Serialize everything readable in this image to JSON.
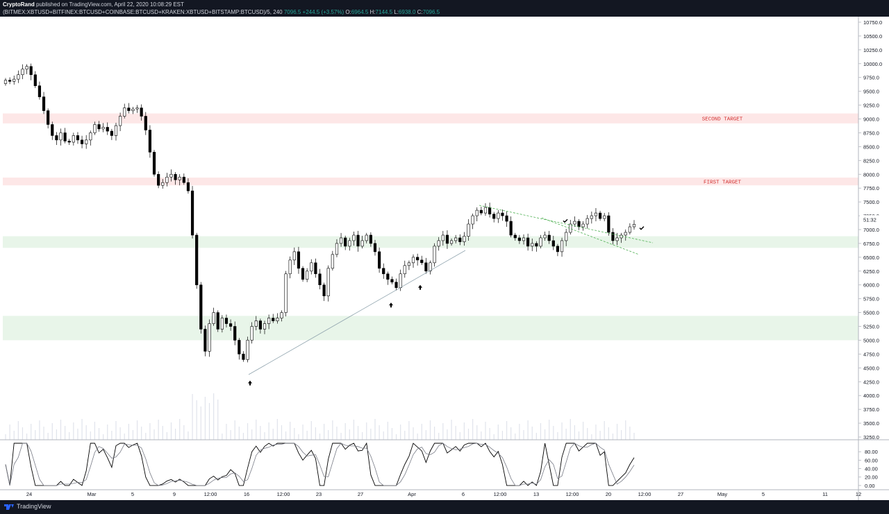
{
  "header": {
    "author": "CryptoRand",
    "published": "published on TradingView.com, April 22, 2020 10:08:29 EST",
    "symbol": "(BITMEX:XBTUSD+BITFINEX:BTCUSD+COINBASE:BTCUSD+KRAKEN:XBTUSD+BITSTAMP:BTCUSD)/5, 240",
    "last": "7096.5",
    "change": "+244.5 (+3.57%)",
    "open_label": "O:",
    "open": "6964.5",
    "high_label": "H:",
    "high": "7144.5",
    "low_label": "L:",
    "low": "6938.0",
    "close_label": "C:",
    "close": "7096.5"
  },
  "footer": {
    "brand": "TradingView"
  },
  "colors": {
    "up": "#ffffff",
    "down": "#000000",
    "support_zone": "#e8f5e9",
    "target_zone": "#fde7e7",
    "target_text": "#d32f2f",
    "price_marker": "#131722"
  },
  "chart_data": {
    "type": "candlestick",
    "price_axis": {
      "ylim": [
        3200,
        10850
      ],
      "ticks": [
        "10750.0",
        "10500.0",
        "10250.0",
        "10000.0",
        "9750.0",
        "9500.0",
        "9250.0",
        "9000.0",
        "8750.0",
        "8500.0",
        "8250.0",
        "8000.0",
        "7750.0",
        "7500.0",
        "7250.0",
        "7000.0",
        "6750.0",
        "6500.0",
        "6250.0",
        "6000.0",
        "5750.0",
        "5500.0",
        "5250.0",
        "5000.0",
        "4750.0",
        "4500.0",
        "4250.0",
        "4000.0",
        "3750.0",
        "3500.0",
        "3250.0"
      ],
      "current_price_label": "51:32",
      "current_price": 7096.5
    },
    "time_axis": {
      "ticks": [
        "24",
        "Mar",
        "5",
        "9",
        "12:00",
        "16",
        "12:00",
        "23",
        "27",
        "Apr",
        "6",
        "12:00",
        "13",
        "12:00",
        "20",
        "12:00",
        "27",
        "May",
        "5",
        "11",
        "12"
      ]
    },
    "oscillator_axis": {
      "ylim": [
        -10,
        105
      ],
      "ticks": [
        "80.00",
        "60.00",
        "40.00",
        "20.00",
        "0.00"
      ]
    },
    "zones": [
      {
        "label": "SECOND TARGET",
        "low": 8920,
        "high": 9100,
        "kind": "target"
      },
      {
        "label": "FIRST TARGET",
        "low": 7800,
        "high": 7940,
        "kind": "target"
      },
      {
        "label": "",
        "low": 6670,
        "high": 6880,
        "kind": "support"
      },
      {
        "label": "",
        "low": 5000,
        "high": 5440,
        "kind": "support"
      }
    ],
    "annotations": {
      "check_marks": [
        {
          "price": 7160
        },
        {
          "price": 7030
        }
      ],
      "arrows": [
        {
          "price": 4220
        },
        {
          "price": 5630
        },
        {
          "price": 5950
        }
      ]
    },
    "series": [
      {
        "name": "",
        "values": [
          9700,
          9680,
          9720,
          9800,
          9900,
          9950,
          9800,
          9600,
          9400,
          9150,
          8900,
          8700,
          8620,
          8750,
          8600,
          8580,
          8700,
          8620,
          8550,
          8620,
          8750,
          8900,
          8820,
          8850,
          8780,
          8700,
          8880,
          9050,
          9200,
          9150,
          9180,
          9200,
          9050,
          8800,
          8400,
          8000,
          7800,
          7850,
          7950,
          8000,
          7900,
          7950,
          7850,
          7700,
          6900,
          6000,
          5200,
          4800,
          5300,
          5500,
          5200,
          5400,
          5300,
          5250,
          5000,
          4750,
          4650,
          5000,
          5250,
          5350,
          5200,
          5300,
          5400,
          5350,
          5400,
          5500,
          6200,
          6450,
          6600,
          6300,
          6100,
          6250,
          6400,
          6200,
          6000,
          5800,
          6300,
          6550,
          6750,
          6850,
          6700,
          6800,
          6900,
          6700,
          6800,
          6900,
          6750,
          6600,
          6300,
          6200,
          6100,
          6050,
          5950,
          6200,
          6350,
          6400,
          6500,
          6450,
          6400,
          6250,
          6400,
          6700,
          6800,
          6900,
          6750,
          6800,
          6850,
          6780,
          6880,
          7100,
          7250,
          7350,
          7300,
          7400,
          7280,
          7200,
          7300,
          7250,
          7150,
          6900,
          6850,
          6800,
          6850,
          6700,
          6750,
          6700,
          6850,
          6900,
          6800,
          6700,
          6600,
          6800,
          6950,
          7100,
          7150,
          7050,
          7100,
          7200,
          7250,
          7300,
          7200,
          7250,
          6950,
          6800,
          6850,
          6900,
          6950,
          7050,
          7096.5
        ]
      }
    ]
  }
}
